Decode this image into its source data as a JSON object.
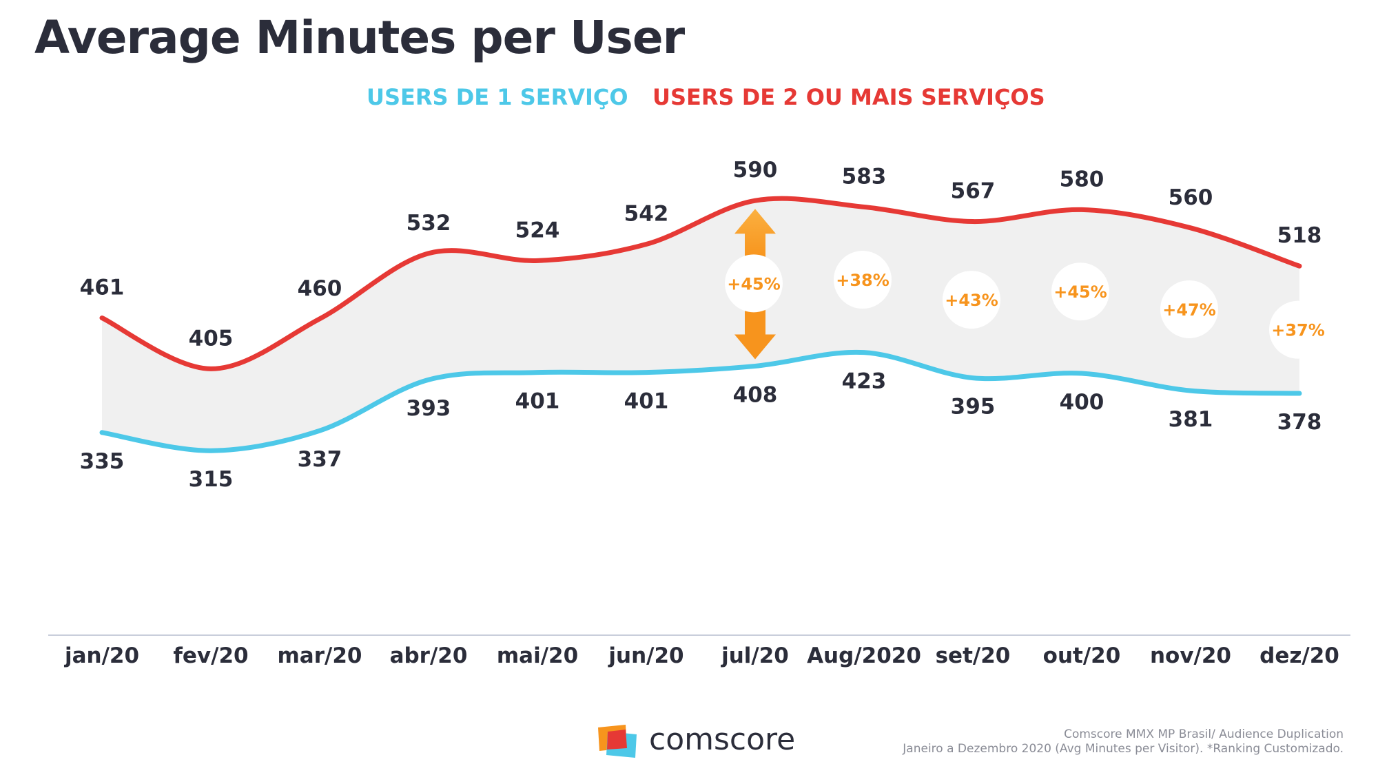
{
  "page": {
    "title": "Average Minutes per User",
    "legend_1": "USERS DE 1 SERVIÇO",
    "legend_2": "USERS DE 2 OU MAIS SERVIÇOS",
    "brand_name": "comscore",
    "source_line_1": "Comscore MMX MP Brasil/ Audience Duplication",
    "source_line_2": "Janeiro a Dezembro 2020 (Avg Minutes per Visitor). *Ranking Customizado."
  },
  "chart_data": {
    "type": "line",
    "title": "Average Minutes per User",
    "categories": [
      "jan/20",
      "fev/20",
      "mar/20",
      "abr/20",
      "mai/20",
      "jun/20",
      "jul/20",
      "Aug/2020",
      "set/20",
      "out/20",
      "nov/20",
      "dez/20"
    ],
    "series": [
      {
        "name": "USERS DE 1 SERVIÇO",
        "color": "#4dc8e8",
        "values": [
          335,
          315,
          337,
          393,
          401,
          401,
          408,
          423,
          395,
          400,
          381,
          378
        ]
      },
      {
        "name": "USERS DE 2 OU MAIS SERVIÇOS",
        "color": "#e63935",
        "values": [
          461,
          405,
          460,
          532,
          524,
          542,
          590,
          583,
          567,
          580,
          560,
          518
        ]
      }
    ],
    "annotations": [
      {
        "category": "jul/20",
        "text": "+45%"
      },
      {
        "category": "Aug/2020",
        "text": "+38%"
      },
      {
        "category": "set/20",
        "text": "+43%"
      },
      {
        "category": "out/20",
        "text": "+45%"
      },
      {
        "category": "nov/20",
        "text": "+47%"
      },
      {
        "category": "dez/20",
        "text": "+37%"
      }
    ],
    "fill_between_color": "#f0f0f0",
    "accent_color": "#f7941d",
    "grid": false
  }
}
